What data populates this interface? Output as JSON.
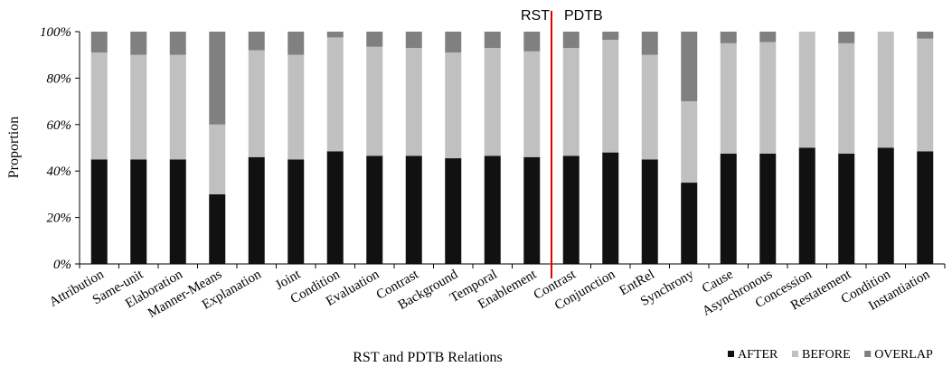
{
  "chart_data": {
    "type": "bar",
    "stacked": true,
    "categories": [
      "Attribution",
      "Same-unit",
      "Elaboration",
      "Manner-Means",
      "Explanation",
      "Joint",
      "Condition",
      "Evaluation",
      "Contrast",
      "Background",
      "Temporal",
      "Enablement",
      "Contrast",
      "Conjunction",
      "EntRel",
      "Synchrony",
      "Cause",
      "Asynchronous",
      "Concession",
      "Restatement",
      "Condition",
      "Instantiation"
    ],
    "series": [
      {
        "name": "AFTER",
        "values": [
          45,
          45,
          45,
          30,
          46,
          45,
          48.5,
          46.5,
          46.5,
          45.5,
          46.5,
          46,
          46.5,
          48,
          45,
          35,
          47.5,
          47.5,
          50,
          47.5,
          50,
          48.5
        ]
      },
      {
        "name": "BEFORE",
        "values": [
          46,
          45,
          45,
          30,
          46,
          45,
          49,
          47,
          46.5,
          45.5,
          46.5,
          45.5,
          46.5,
          48.5,
          45,
          35,
          47.5,
          48,
          50,
          47.5,
          50,
          48.5
        ]
      },
      {
        "name": "OVERLAP",
        "values": [
          9,
          10,
          10,
          40,
          8,
          10,
          2.5,
          6.5,
          7,
          9,
          7,
          8.5,
          7,
          3.5,
          10,
          30,
          5,
          4.5,
          0,
          5,
          0,
          3
        ]
      }
    ],
    "colors": {
      "AFTER": "#111111",
      "BEFORE": "#c0c0c0",
      "OVERLAP": "#808080"
    },
    "xlabel": "RST and PDTB Relations",
    "ylabel": "Proportion",
    "ylim": [
      0,
      100
    ],
    "yticks": [
      "0%",
      "20%",
      "40%",
      "60%",
      "80%",
      "100%"
    ],
    "grid": false,
    "legend_position": "bottom-right",
    "divider": {
      "after_index": 11,
      "color": "#e00000",
      "left_label": "RST",
      "right_label": "PDTB"
    }
  }
}
